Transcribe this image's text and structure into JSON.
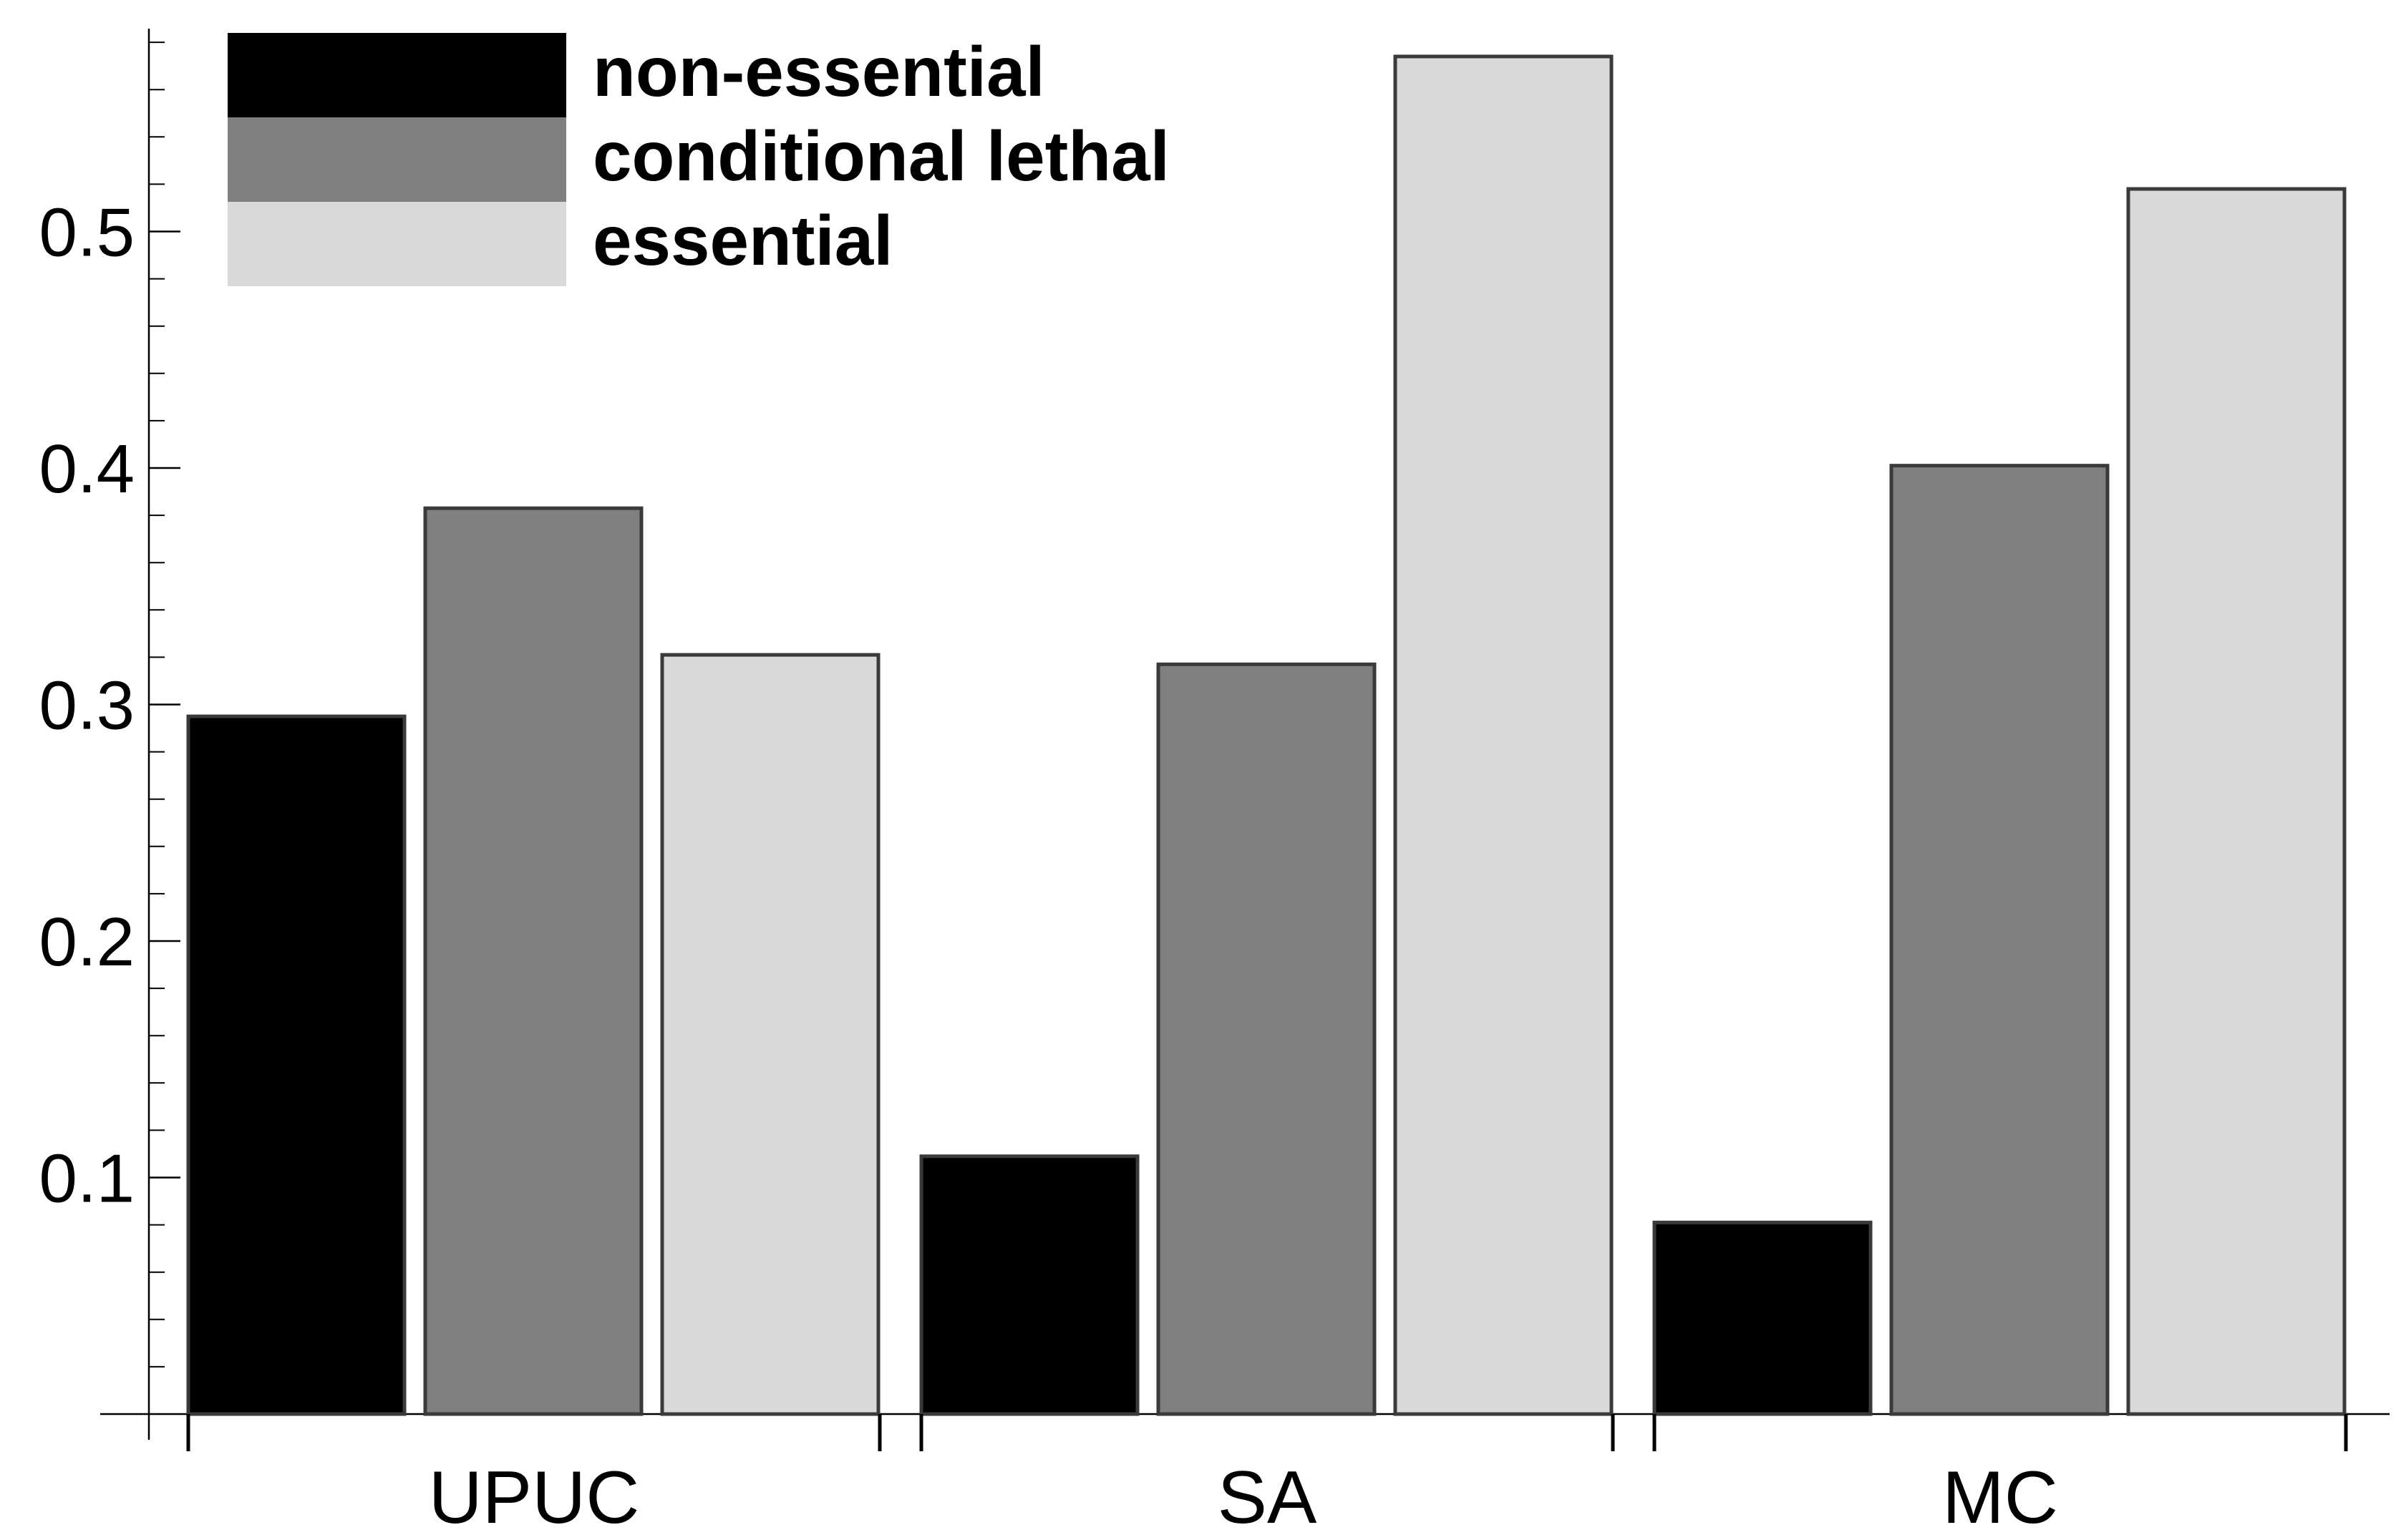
{
  "chart_data": {
    "type": "bar",
    "title": "",
    "xlabel": "",
    "ylabel": "",
    "categories": [
      "UPUC",
      "SA",
      "MC"
    ],
    "series": [
      {
        "name": "non-essential",
        "color": "#000000",
        "values": [
          0.295,
          0.109,
          0.081
        ]
      },
      {
        "name": "conditional lethal",
        "color": "#808080",
        "values": [
          0.383,
          0.317,
          0.401
        ]
      },
      {
        "name": "essential",
        "color": "#d9d9d9",
        "values": [
          0.321,
          0.574,
          0.518
        ]
      }
    ],
    "ylim": [
      0,
      0.585
    ],
    "yticks": [
      "0.1",
      "0.2",
      "0.3",
      "0.4",
      "0.5"
    ],
    "grid": false,
    "legend_position": "top-left",
    "bar_edge_color": "#3a3a3a",
    "axis_color": "#000000"
  }
}
